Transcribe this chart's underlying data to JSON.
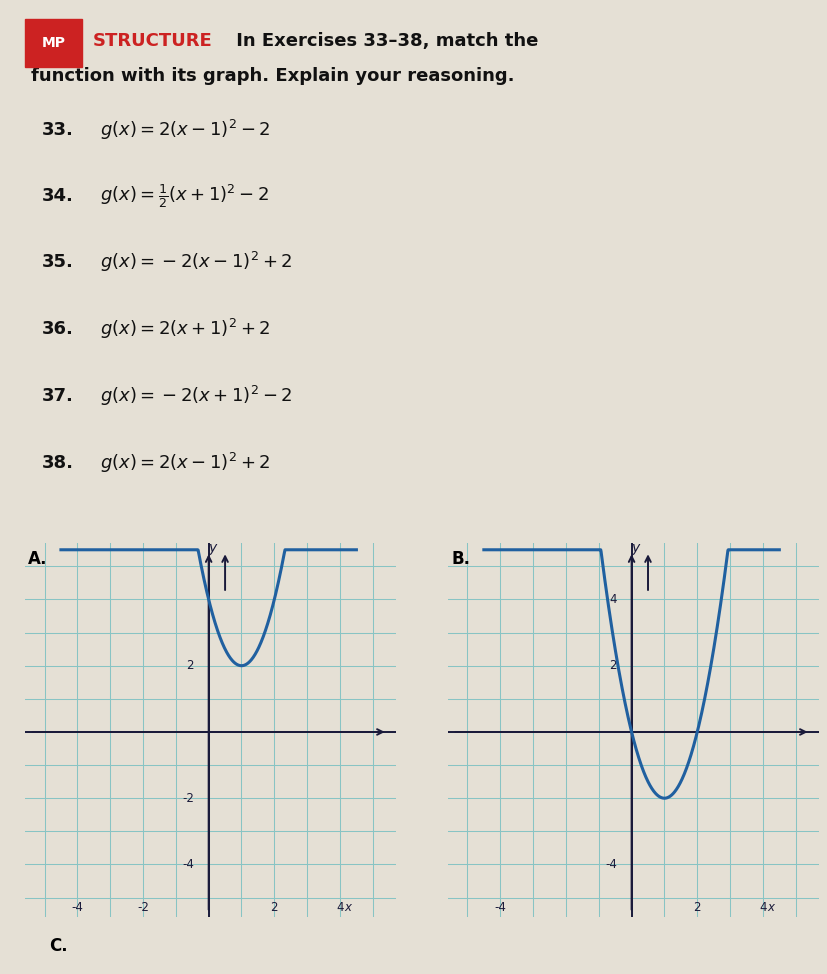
{
  "page_bg": "#e5e0d5",
  "graph_bg": "#cce0e0",
  "grid_color": "#88c4c4",
  "axis_color": "#1a1a3a",
  "curve_color": "#2060a0",
  "mp_bg": "#cc2222",
  "mp_text_color": "#ffffff",
  "title_color_mp": "#cc2222",
  "title_color_black": "#111111",
  "ex_color": "#111111",
  "exercises": [
    {
      "num": "33.",
      "latex": "$g(x) = 2(x - 1)^2 - 2$"
    },
    {
      "num": "34.",
      "latex": "$g(x) = \\frac{1}{2}(x + 1)^2 - 2$"
    },
    {
      "num": "35.",
      "latex": "$g(x) = -2(x - 1)^2 + 2$"
    },
    {
      "num": "36.",
      "latex": "$g(x) = 2(x + 1)^2 + 2$"
    },
    {
      "num": "37.",
      "latex": "$g(x) = -2(x + 1)^2 - 2$"
    },
    {
      "num": "38.",
      "latex": "$g(x) = 2(x - 1)^2 + 2$"
    }
  ],
  "graphA": {
    "label": "A.",
    "func": "2*(x-1)**2 + 2",
    "xlim": [
      -5,
      5
    ],
    "ylim": [
      -5,
      5
    ],
    "xticks": [
      -4,
      -2,
      2,
      4
    ],
    "yticks": [
      -4,
      -2,
      2
    ],
    "x_clip_min": -4.5,
    "x_clip_max": 4.5
  },
  "graphB": {
    "label": "B.",
    "func": "2*(x-1)**2 - 2",
    "xlim": [
      -5,
      5
    ],
    "ylim": [
      -5,
      5
    ],
    "xticks": [
      -4,
      2,
      4
    ],
    "yticks": [
      -4,
      2,
      4
    ],
    "x_clip_min": -4.5,
    "x_clip_max": 4.5
  }
}
